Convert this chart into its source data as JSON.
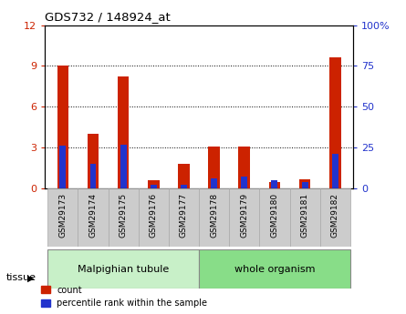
{
  "title": "GDS732 / 148924_at",
  "samples": [
    "GSM29173",
    "GSM29174",
    "GSM29175",
    "GSM29176",
    "GSM29177",
    "GSM29178",
    "GSM29179",
    "GSM29180",
    "GSM29181",
    "GSM29182"
  ],
  "count_values": [
    9.05,
    4.0,
    8.2,
    0.6,
    1.8,
    3.05,
    3.1,
    0.5,
    0.7,
    9.6
  ],
  "percentile_values": [
    26.0,
    15.0,
    27.0,
    2.0,
    2.5,
    6.0,
    7.5,
    5.0,
    4.0,
    21.0
  ],
  "left_ylim": [
    0,
    12
  ],
  "right_ylim": [
    0,
    100
  ],
  "left_yticks": [
    0,
    3,
    6,
    9,
    12
  ],
  "right_yticks": [
    0,
    25,
    50,
    75,
    100
  ],
  "right_yticklabels": [
    "0",
    "25",
    "50",
    "75",
    "100%"
  ],
  "count_color": "#cc2200",
  "percentile_color": "#2233cc",
  "tissue_color_mt": "#c8f0c8",
  "tissue_color_wo": "#88dd88",
  "legend_count_label": "count",
  "legend_percentile_label": "percentile rank within the sample",
  "tissue_label": "tissue",
  "mt_indices": [
    0,
    1,
    2,
    3,
    4
  ],
  "wo_indices": [
    5,
    6,
    7,
    8,
    9
  ]
}
